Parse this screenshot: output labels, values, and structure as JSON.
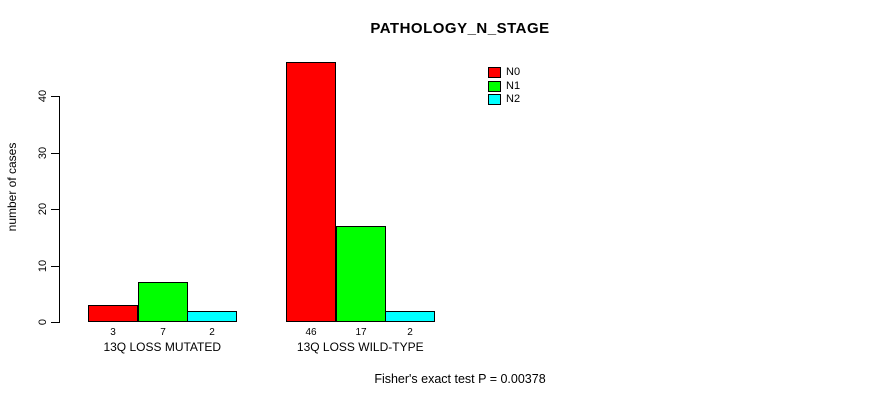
{
  "title": "PATHOLOGY_N_STAGE",
  "y_axis": {
    "label": "number of cases",
    "tick_labels": [
      "0",
      "10",
      "20",
      "30",
      "40"
    ]
  },
  "footer": "Fisher's exact test P = 0.00378",
  "colors": {
    "n0": "#FF0000",
    "n1": "#00FF00",
    "n2": "#00FFFF"
  },
  "chart_data": {
    "type": "bar",
    "title": "PATHOLOGY_N_STAGE",
    "categories": [
      "13Q LOSS MUTATED",
      "13Q LOSS WILD-TYPE"
    ],
    "series": [
      {
        "name": "N0",
        "color": "#FF0000",
        "values": [
          3,
          46
        ]
      },
      {
        "name": "N1",
        "color": "#00FF00",
        "values": [
          7,
          17
        ]
      },
      {
        "name": "N2",
        "color": "#00FFFF",
        "values": [
          2,
          2
        ]
      }
    ],
    "bar_value_labels": [
      [
        "3",
        "7",
        "2"
      ],
      [
        "46",
        "17",
        "2"
      ]
    ],
    "xlabel": "",
    "ylabel": "number of cases",
    "yticks": [
      0,
      10,
      20,
      30,
      40
    ],
    "ylim": [
      0,
      46
    ],
    "grid": false,
    "legend_position": "top-right",
    "annotation": "Fisher's exact test P = 0.00378"
  }
}
